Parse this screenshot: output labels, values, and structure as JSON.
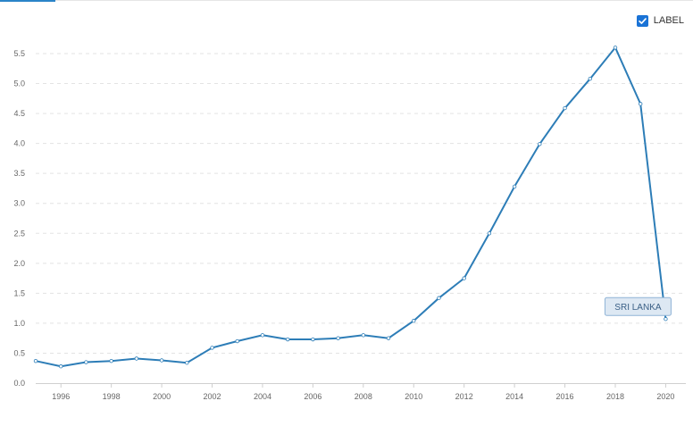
{
  "controls": {
    "label_toggle": {
      "text": "LABEL",
      "checked": true
    }
  },
  "colors": {
    "series": "#2d7db7",
    "grid": "#e3e3e3",
    "accent": "#1a73d6"
  },
  "chart_data": {
    "type": "line",
    "x": [
      1995,
      1996,
      1997,
      1998,
      1999,
      2000,
      2001,
      2002,
      2003,
      2004,
      2005,
      2006,
      2007,
      2008,
      2009,
      2010,
      2011,
      2012,
      2013,
      2014,
      2015,
      2016,
      2017,
      2018,
      2019,
      2020
    ],
    "series": [
      {
        "name": "SRI LANKA",
        "values": [
          0.37,
          0.28,
          0.35,
          0.37,
          0.41,
          0.38,
          0.34,
          0.59,
          0.7,
          0.8,
          0.73,
          0.73,
          0.75,
          0.8,
          0.75,
          1.04,
          1.42,
          1.75,
          2.5,
          3.28,
          3.99,
          4.59,
          5.08,
          5.6,
          4.66,
          1.07
        ]
      }
    ],
    "x_tick_labels": [
      "1996",
      "1998",
      "2000",
      "2002",
      "2004",
      "2006",
      "2008",
      "2010",
      "2012",
      "2014",
      "2016",
      "2018",
      "2020"
    ],
    "y_tick_labels": [
      "0.0",
      "0.5",
      "1.0",
      "1.5",
      "2.0",
      "2.5",
      "3.0",
      "3.5",
      "4.0",
      "4.5",
      "5.0",
      "5.5"
    ],
    "xlim": [
      1995,
      2020.8
    ],
    "ylim": [
      0,
      5.5
    ],
    "grid": true,
    "legend": "none",
    "annotations": [
      {
        "text": "SRI LANKA",
        "series": 0,
        "at": "last-point"
      }
    ]
  }
}
